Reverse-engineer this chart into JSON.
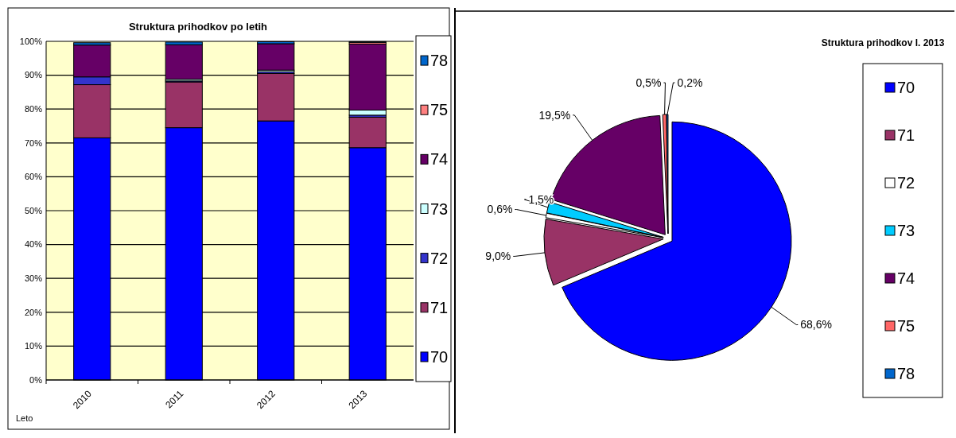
{
  "chart_data": [
    {
      "type": "bar",
      "title": "Struktura prihodkov po letih",
      "xlabel": "Leto",
      "stacked": true,
      "categories": [
        "2010",
        "2011",
        "2012",
        "2013"
      ],
      "series": [
        {
          "name": "70",
          "color": "#0000ff",
          "values": [
            71.5,
            74.5,
            76.5,
            68.6
          ]
        },
        {
          "name": "71",
          "color": "#993366",
          "values": [
            15.7,
            13.5,
            14.0,
            9.0
          ]
        },
        {
          "name": "72",
          "color": "#3333cc",
          "values": [
            2.3,
            0.3,
            0.5,
            0.6
          ]
        },
        {
          "name": "73",
          "color": "#ccffff",
          "values": [
            null,
            0.5,
            0.5,
            1.5
          ]
        },
        {
          "name": "74",
          "color": "#660066",
          "values": [
            9.4,
            10.2,
            7.8,
            19.5
          ]
        },
        {
          "name": "75",
          "color": "#ff8080",
          "values": [
            null,
            null,
            null,
            0.5
          ]
        },
        {
          "name": "78",
          "color": "#0066cc",
          "values": [
            0.7,
            0.8,
            0.6,
            0.2
          ]
        }
      ],
      "ylim": [
        0,
        100
      ],
      "yticks": [
        {
          "value": 0,
          "label": "0%"
        },
        {
          "value": 10,
          "label": "10%"
        },
        {
          "value": 20,
          "label": "20%"
        },
        {
          "value": 30,
          "label": "30%"
        },
        {
          "value": 40,
          "label": "40%"
        },
        {
          "value": 50,
          "label": "50%"
        },
        {
          "value": 60,
          "label": "60%"
        },
        {
          "value": 70,
          "label": "70%"
        },
        {
          "value": 80,
          "label": "80%"
        },
        {
          "value": 90,
          "label": "90%"
        },
        {
          "value": 100,
          "label": "100%"
        }
      ],
      "grid": "y",
      "legend": "right"
    },
    {
      "type": "pie",
      "title": "Struktura prihodkov l. 2013",
      "categories": [
        "70",
        "71",
        "72",
        "73",
        "74",
        "75",
        "78"
      ],
      "values": [
        68.6,
        9.0,
        0.6,
        1.5,
        19.5,
        0.5,
        0.2
      ],
      "colors": [
        "#0000ff",
        "#993366",
        "#ffffff",
        "#00ccff",
        "#660066",
        "#ff6666",
        "#0066cc"
      ],
      "value_labels": [
        "68,6%",
        "9,0%",
        "0,6%",
        "1,5%",
        "19,5%",
        "0,5%",
        "0,2%"
      ],
      "legend": "right"
    }
  ]
}
